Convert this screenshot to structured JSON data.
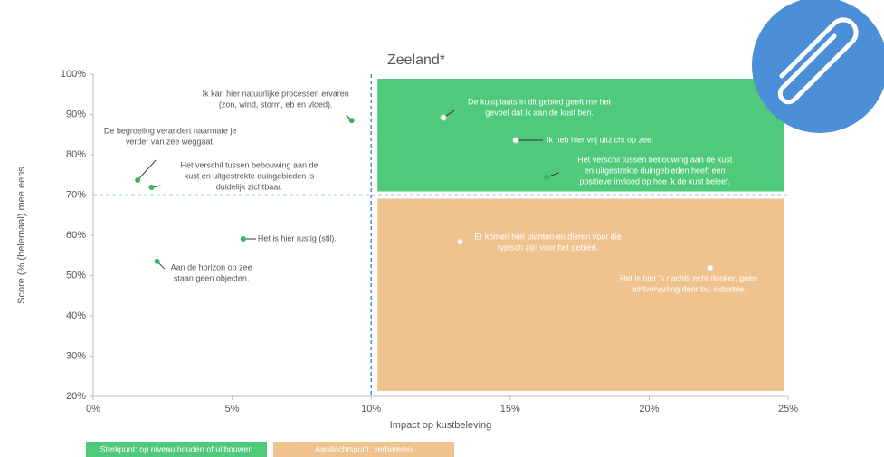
{
  "chart_data": {
    "type": "scatter",
    "title": "Zeeland*",
    "x_label": "Impact op kustbeleving",
    "y_label": "Score (% (helemaal) mee eens",
    "xlim": [
      0,
      25
    ],
    "ylim": [
      20,
      100
    ],
    "xticks": [
      {
        "value": 0,
        "label": "0%"
      },
      {
        "value": 5,
        "label": "5%"
      },
      {
        "value": 10,
        "label": "10%"
      },
      {
        "value": 15,
        "label": "15%"
      },
      {
        "value": 20,
        "label": "20%"
      },
      {
        "value": 25,
        "label": "25%"
      }
    ],
    "yticks": [
      {
        "value": 20,
        "label": "20%"
      },
      {
        "value": 30,
        "label": "30%"
      },
      {
        "value": 40,
        "label": "40%"
      },
      {
        "value": 50,
        "label": "50%"
      },
      {
        "value": 60,
        "label": "60%"
      },
      {
        "value": 70,
        "label": "70%"
      },
      {
        "value": 80,
        "label": "80%"
      },
      {
        "value": 90,
        "label": "90%"
      },
      {
        "value": 100,
        "label": "100%"
      }
    ],
    "x_threshold": 10,
    "y_threshold": 70,
    "strong_color": "#4fc97a",
    "attention_color": "#f0c28e",
    "legend": [
      {
        "label": "Sterkpunt: op niveau houden of uitbouwen",
        "color": "#4fc97a"
      },
      {
        "label": "Aandachtspunt: verbeteren",
        "color": "#f0c28e"
      }
    ],
    "points": [
      {
        "x": 9.3,
        "y": 88.5,
        "color": "#3cb55a",
        "lines": [
          "Ik kan hier natuurlijke processen ervaren",
          "(zon, wind, storm, eb en vloed)."
        ]
      },
      {
        "x": 1.6,
        "y": 73.7,
        "color": "#3cb55a",
        "lines": [
          "De begroeiing verandert naarmate je",
          "verder van zee weggaat."
        ]
      },
      {
        "x": 2.1,
        "y": 71.9,
        "color": "#3cb55a",
        "lines": [
          "Het verschil tussen bebouwing aan de",
          "kust en uitgestrekte duingebieden is",
          "duidelijk zichtbaar."
        ]
      },
      {
        "x": 5.4,
        "y": 59.1,
        "color": "#3cb55a",
        "lines": [
          "Het is hier rustig (stil)."
        ]
      },
      {
        "x": 2.3,
        "y": 53.5,
        "color": "#3cb55a",
        "lines": [
          "Aan de horizon op zee",
          "staan geen objecten."
        ]
      },
      {
        "x": 12.6,
        "y": 89.2,
        "color": "#ffffff",
        "lines": [
          "De kustplaats in dit gebied geeft me het",
          "gevoel dat ik aan de kust ben."
        ]
      },
      {
        "x": 15.2,
        "y": 83.6,
        "color": "#ffffff",
        "lines": [
          "Ik heb hier vrij uitzicht op zee."
        ]
      },
      {
        "x": 16.3,
        "y": 74.4,
        "color": "#3cb55a",
        "lines": [
          "Het verschil tussen bebouwing aan de kust",
          "en uitgestrekte duingebieden heeft een",
          "positieve invloed op hoe ik de kust beleef."
        ]
      },
      {
        "x": 13.2,
        "y": 58.4,
        "color": "#ffffff",
        "lines": [
          "Er komen hier planten en dieren voor die",
          "typisch zijn voor het gebied."
        ]
      },
      {
        "x": 22.2,
        "y": 51.9,
        "color": "#ffffff",
        "lines": [
          "Het is hier 's nachts echt donker, geen",
          "lichtvervuiling door bv. industrie."
        ]
      }
    ]
  }
}
